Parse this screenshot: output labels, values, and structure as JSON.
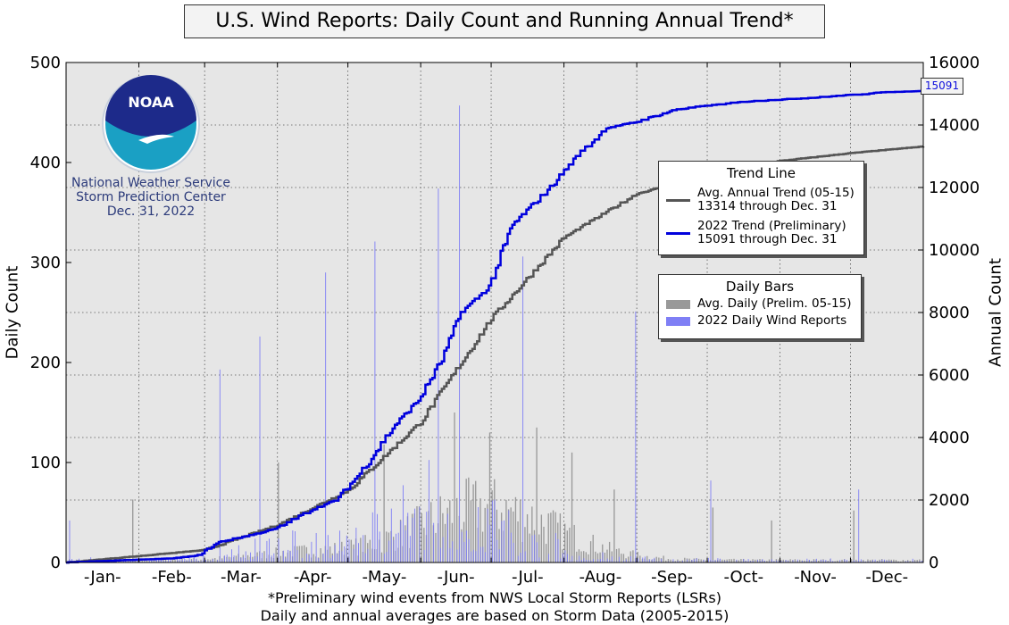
{
  "title": "U.S. Wind Reports: Daily Count and Running Annual Trend*",
  "footnote_1": "*Preliminary wind events from NWS Local Storm Reports (LSRs)",
  "footnote_2": "Daily and annual averages are based on Storm Data (2005-2015)",
  "logo": {
    "mark": "NOAA",
    "line1": "National Weather Service",
    "line2": "Storm Prediction Center",
    "date": "Dec. 31, 2022"
  },
  "end_label": "15091",
  "colors": {
    "plot_bg": "#e6e6e6",
    "trend_2022": "#0000dd",
    "trend_avg": "#555555",
    "bar_2022": "#7f7ff5",
    "bar_avg": "#999999"
  },
  "legend_trend": {
    "title": "Trend Line",
    "avg_line1": "Avg. Annual Trend (05-15)",
    "avg_line2": "13314 through Dec. 31",
    "y2022_line1": "2022 Trend (Preliminary)",
    "y2022_line2": "15091 through Dec. 31"
  },
  "legend_bars": {
    "title": "Daily Bars",
    "avg": "Avg. Daily (Prelim. 05-15)",
    "y2022": "2022 Daily Wind Reports"
  },
  "chart_data": {
    "type": "bar",
    "ylabel": "Daily Count",
    "y2label": "Annual Count",
    "ylim": [
      0,
      500
    ],
    "y2lim": [
      0,
      16000
    ],
    "xlim": [
      0,
      365
    ],
    "grid": true,
    "yticks": [
      0,
      100,
      200,
      300,
      400,
      500
    ],
    "y2ticks": [
      0,
      2000,
      4000,
      6000,
      8000,
      10000,
      12000,
      14000,
      16000
    ],
    "months": [
      "-Jan-",
      "-Feb-",
      "-Mar-",
      "-Apr-",
      "-May-",
      "-Jun-",
      "-Jul-",
      "-Aug-",
      "-Sep-",
      "-Oct-",
      "-Nov-",
      "-Dec-"
    ],
    "month_mid_days": [
      15.5,
      45,
      74.5,
      105,
      135.5,
      166,
      196.5,
      227.5,
      258,
      288.5,
      319,
      349.5
    ],
    "month_grid_days": [
      31,
      59,
      90,
      120,
      151,
      181,
      212,
      243,
      273,
      304,
      334
    ],
    "series": [
      {
        "name": "2022 Trend (Preliminary)",
        "kind": "line",
        "axis": "right",
        "points": [
          [
            0,
            0
          ],
          [
            28,
            80
          ],
          [
            45,
            130
          ],
          [
            56,
            220
          ],
          [
            65,
            650
          ],
          [
            80,
            900
          ],
          [
            90,
            1100
          ],
          [
            105,
            1700
          ],
          [
            115,
            2000
          ],
          [
            125,
            2850
          ],
          [
            140,
            4400
          ],
          [
            150,
            5200
          ],
          [
            160,
            6500
          ],
          [
            168,
            8000
          ],
          [
            180,
            8800
          ],
          [
            190,
            10800
          ],
          [
            205,
            11900
          ],
          [
            215,
            12800
          ],
          [
            230,
            13900
          ],
          [
            243,
            14100
          ],
          [
            260,
            14500
          ],
          [
            290,
            14750
          ],
          [
            320,
            14880
          ],
          [
            350,
            15050
          ],
          [
            365,
            15091
          ]
        ]
      },
      {
        "name": "Avg. Annual Trend (05-15)",
        "kind": "line",
        "axis": "right",
        "points": [
          [
            0,
            0
          ],
          [
            30,
            200
          ],
          [
            59,
            400
          ],
          [
            90,
            1200
          ],
          [
            120,
            2300
          ],
          [
            151,
            4500
          ],
          [
            181,
            7800
          ],
          [
            212,
            10400
          ],
          [
            243,
            11800
          ],
          [
            273,
            12400
          ],
          [
            304,
            12850
          ],
          [
            334,
            13100
          ],
          [
            365,
            13314
          ]
        ]
      },
      {
        "name": "2022 Daily Wind Reports",
        "kind": "bar",
        "axis": "left",
        "peaks": [
          [
            1,
            42
          ],
          [
            65,
            193
          ],
          [
            82,
            226
          ],
          [
            110,
            290
          ],
          [
            131,
            321
          ],
          [
            158,
            374
          ],
          [
            167,
            457
          ],
          [
            194,
            306
          ],
          [
            242,
            251
          ],
          [
            274,
            82
          ],
          [
            337,
            73
          ]
        ]
      },
      {
        "name": "Avg. Daily (Prelim. 05-15)",
        "kind": "bar",
        "axis": "left",
        "peaks": [
          [
            28,
            63
          ],
          [
            90,
            100
          ],
          [
            135,
            118
          ],
          [
            165,
            150
          ],
          [
            180,
            130
          ],
          [
            200,
            135
          ],
          [
            215,
            110
          ],
          [
            233,
            73
          ],
          [
            275,
            55
          ],
          [
            300,
            42
          ],
          [
            335,
            52
          ]
        ]
      }
    ]
  }
}
